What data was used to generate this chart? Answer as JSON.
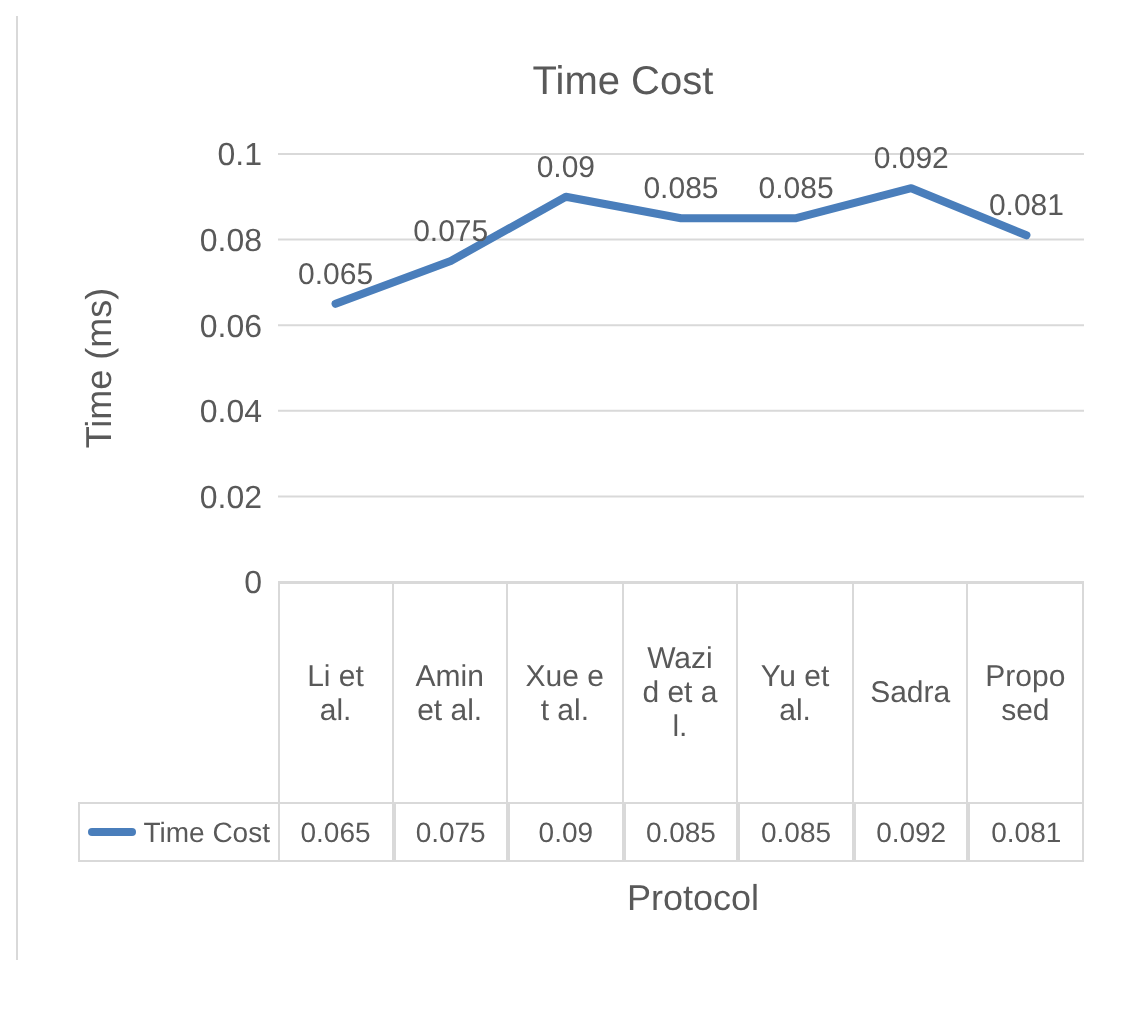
{
  "chart_data": {
    "type": "line",
    "title": "Time Cost",
    "xlabel": "Protocol",
    "ylabel": "Time (ms)",
    "categories": [
      "Li et al.",
      "Amin et al.",
      "Xue et al.",
      "Wazid et al.",
      "Yu et al.",
      "Sadra",
      "Proposed"
    ],
    "series": [
      {
        "name": "Time Cost",
        "color": "#4a7ebb",
        "values": [
          0.065,
          0.075,
          0.09,
          0.085,
          0.085,
          0.092,
          0.081
        ],
        "value_labels": [
          "0.065",
          "0.075",
          "0.09",
          "0.085",
          "0.085",
          "0.092",
          "0.081"
        ]
      }
    ],
    "annotations": [
      "0.065",
      "0.075",
      "0.09",
      "0.085",
      "0.085",
      "0.092",
      "0.081"
    ],
    "ylim": [
      0,
      0.1
    ],
    "yticks": [
      0,
      0.02,
      0.04,
      0.06,
      0.08,
      0.1
    ],
    "grid": "y",
    "legend": "bottom",
    "marker": "none",
    "line_style": "solid"
  }
}
